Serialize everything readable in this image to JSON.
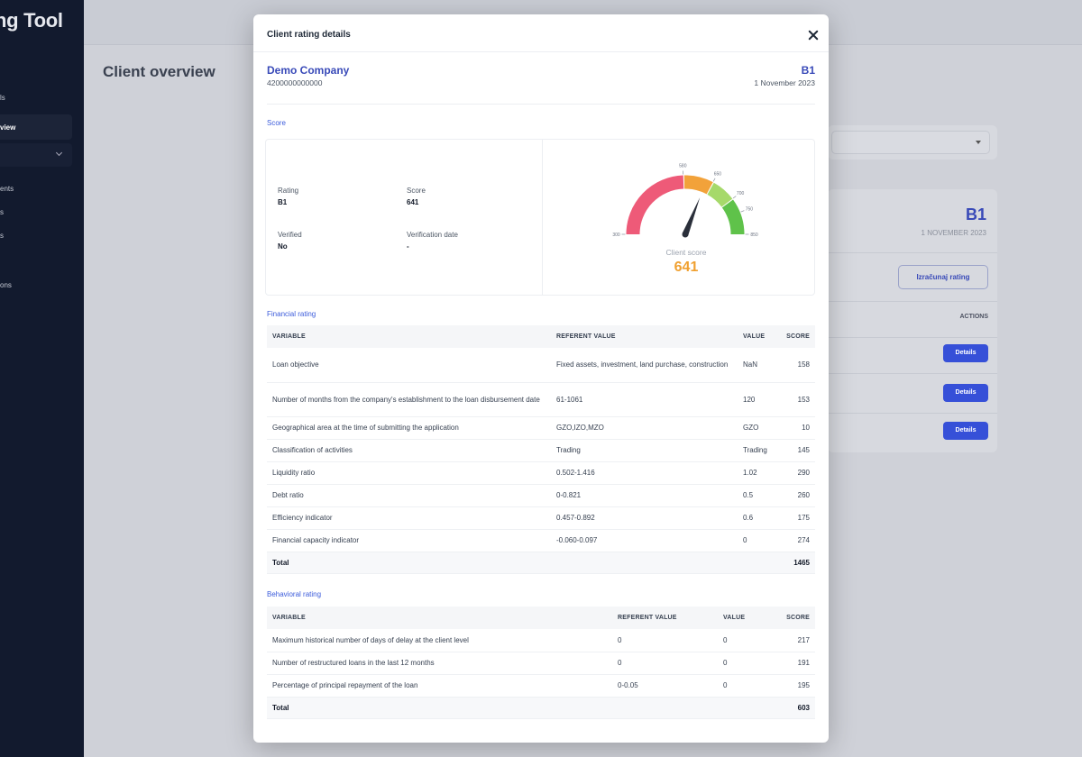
{
  "app": {
    "title": "ng Tool"
  },
  "sidebar": {
    "items": [
      {
        "label": "ls"
      },
      {
        "label": "view"
      },
      {
        "label": ""
      },
      {
        "label": "ents"
      },
      {
        "label": "s"
      },
      {
        "label": "s"
      },
      {
        "label": "ons"
      }
    ]
  },
  "page": {
    "title": "Client overview"
  },
  "background_card": {
    "rating": "B1",
    "date": "1 NOVEMBER 2023",
    "button_label": "Izračunaj rating",
    "actions_header": "ACTIONS",
    "details_label": "Details"
  },
  "modal": {
    "title": "Client rating details",
    "company": {
      "name": "Demo Company",
      "id": "4200000000000",
      "rating": "B1",
      "date": "1 November 2023"
    },
    "score_section": {
      "label": "Score",
      "rating_label": "Rating",
      "rating_value": "B1",
      "score_label": "Score",
      "score_value": "641",
      "verified_label": "Verified",
      "verified_value": "No",
      "verification_date_label": "Verification date",
      "verification_date_value": "-",
      "gauge": {
        "min": 300,
        "max": 850,
        "value": 641,
        "tick_labels": [
          "300",
          "580",
          "650",
          "700",
          "750",
          "850"
        ],
        "client_score_label": "Client score",
        "client_score_value": "641",
        "colors": {
          "red": "#ee5a78",
          "orange": "#f2a23a",
          "lightgreen": "#a6d96a",
          "green": "#5fc24a",
          "needle": "#2a2f3a",
          "value": "#f0a030"
        }
      }
    },
    "financial": {
      "label": "Financial rating",
      "headers": [
        "VARIABLE",
        "REFERENT VALUE",
        "VALUE",
        "SCORE"
      ],
      "rows": [
        {
          "variable": "Loan objective",
          "referent": "Fixed assets, investment, land purchase, construction",
          "value": "NaN",
          "score": "158"
        },
        {
          "variable": "Number of months from the company's establishment to the loan disbursement date",
          "referent": "61-1061",
          "value": "120",
          "score": "153"
        },
        {
          "variable": "Geographical area at the time of submitting the application",
          "referent": "GZO,IZO,MZO",
          "value": "GZO",
          "score": "10"
        },
        {
          "variable": "Classification of activities",
          "referent": "Trading",
          "value": "Trading",
          "score": "145"
        },
        {
          "variable": "Liquidity ratio",
          "referent": "0.502-1.416",
          "value": "1.02",
          "score": "290"
        },
        {
          "variable": "Debt ratio",
          "referent": "0-0.821",
          "value": "0.5",
          "score": "260"
        },
        {
          "variable": "Efficiency indicator",
          "referent": "0.457-0.892",
          "value": "0.6",
          "score": "175"
        },
        {
          "variable": "Financial capacity indicator",
          "referent": "-0.060-0.097",
          "value": "0",
          "score": "274"
        }
      ],
      "total_label": "Total",
      "total_value": "1465"
    },
    "behavioral": {
      "label": "Behavioral rating",
      "headers": [
        "VARIABLE",
        "REFERENT VALUE",
        "VALUE",
        "SCORE"
      ],
      "rows": [
        {
          "variable": "Maximum historical number of days of delay at the client level",
          "referent": "0",
          "value": "0",
          "score": "217"
        },
        {
          "variable": "Number of restructured loans in the last 12 months",
          "referent": "0",
          "value": "0",
          "score": "191"
        },
        {
          "variable": "Percentage of principal repayment of the loan",
          "referent": "0-0.05",
          "value": "0",
          "score": "195"
        }
      ],
      "total_label": "Total",
      "total_value": "603"
    }
  }
}
